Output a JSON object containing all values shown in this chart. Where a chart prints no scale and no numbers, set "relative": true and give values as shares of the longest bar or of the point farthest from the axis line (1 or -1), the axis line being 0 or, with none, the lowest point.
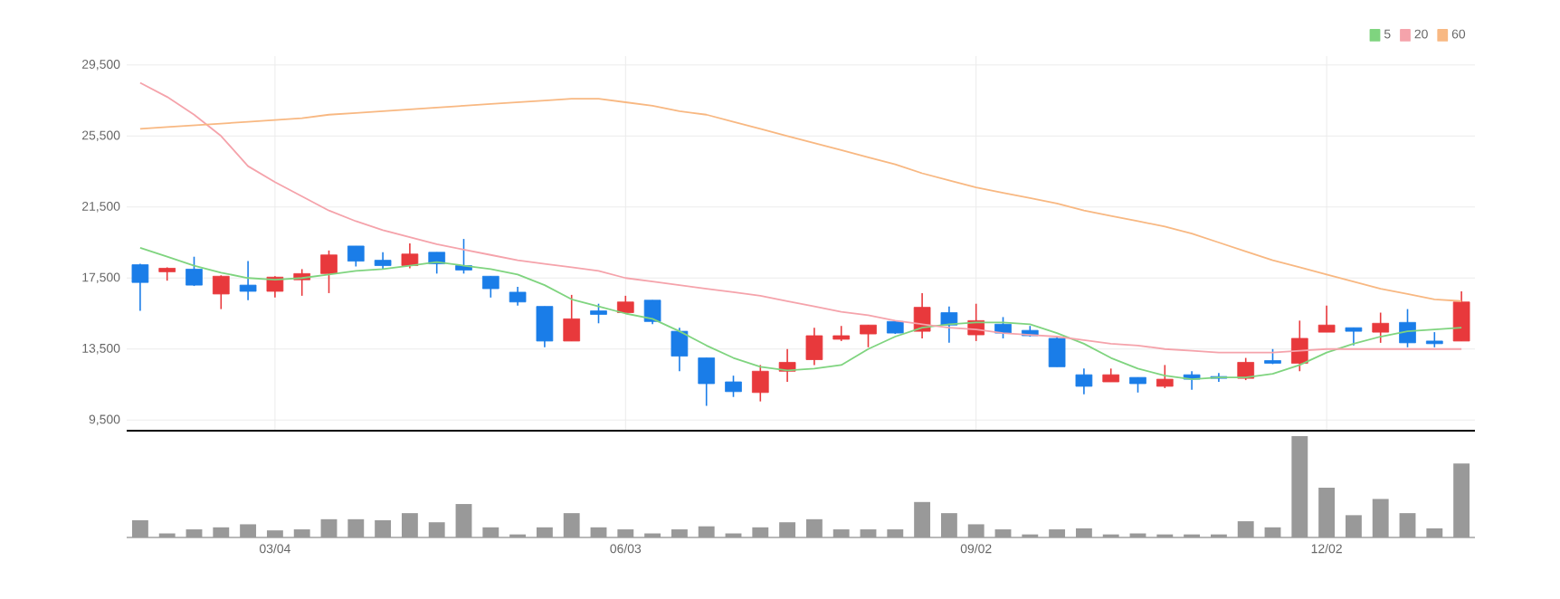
{
  "chart_data": [
    {
      "type": "candlestick",
      "categories": [
        null,
        null,
        null,
        null,
        null,
        null,
        null,
        null,
        null,
        null,
        null,
        null,
        null,
        null,
        null,
        null,
        null,
        null,
        null,
        null,
        null,
        null,
        null,
        null,
        null,
        null,
        null,
        null,
        null,
        null,
        null,
        null,
        null,
        null,
        null,
        null,
        null,
        null,
        null,
        null,
        null,
        null,
        null,
        null,
        null,
        null,
        null,
        null,
        null,
        null
      ],
      "series": [
        {
          "type": "candlestick",
          "ohlc": [
            [
              18250,
              18300,
              15650,
              17250
            ],
            [
              17850,
              18100,
              17350,
              18050
            ],
            [
              18000,
              18700,
              17050,
              17100
            ],
            [
              16600,
              17650,
              15750,
              17600
            ],
            [
              17100,
              18450,
              16250,
              16750
            ],
            [
              16750,
              17600,
              16400,
              17550
            ],
            [
              17400,
              18000,
              16500,
              17750
            ],
            [
              17750,
              19050,
              16650,
              18800
            ],
            [
              19300,
              19300,
              18150,
              18450
            ],
            [
              18500,
              18950,
              18000,
              18200
            ],
            [
              18200,
              19450,
              18050,
              18850
            ],
            [
              18950,
              18950,
              17750,
              18300
            ],
            [
              18200,
              19700,
              17750,
              17950
            ],
            [
              17600,
              17600,
              16400,
              16900
            ],
            [
              16700,
              17000,
              15950,
              16150
            ],
            [
              15900,
              15900,
              13600,
              13950
            ],
            [
              13950,
              16550,
              13950,
              15200
            ],
            [
              15650,
              16050,
              14950,
              15450
            ],
            [
              15550,
              16500,
              15550,
              16150
            ],
            [
              16250,
              16250,
              14900,
              15050
            ],
            [
              14500,
              14700,
              12250,
              13100
            ],
            [
              13000,
              13000,
              10300,
              11550
            ],
            [
              11650,
              12000,
              10800,
              11100
            ],
            [
              11050,
              12600,
              10550,
              12250
            ],
            [
              12250,
              13500,
              11650,
              12750
            ],
            [
              12900,
              14700,
              12600,
              14250
            ],
            [
              14050,
              14800,
              13950,
              14250
            ],
            [
              14350,
              14850,
              13600,
              14850
            ],
            [
              15050,
              15100,
              14350,
              14400
            ],
            [
              14500,
              16650,
              14100,
              15850
            ],
            [
              15550,
              15900,
              13850,
              14850
            ],
            [
              14300,
              16050,
              13950,
              15100
            ],
            [
              14900,
              15300,
              14100,
              14400
            ],
            [
              14550,
              14800,
              14200,
              14250
            ],
            [
              14100,
              14200,
              12500,
              12500
            ],
            [
              12050,
              12400,
              10950,
              11400
            ],
            [
              11650,
              12400,
              11650,
              12050
            ],
            [
              11900,
              11900,
              11050,
              11550
            ],
            [
              11400,
              12600,
              11300,
              11800
            ],
            [
              12050,
              12250,
              11200,
              11800
            ],
            [
              11950,
              12150,
              11650,
              11850
            ],
            [
              11850,
              13000,
              11750,
              12750
            ],
            [
              12850,
              13500,
              12650,
              12700
            ],
            [
              12700,
              15100,
              12250,
              14100
            ],
            [
              14450,
              15950,
              14450,
              14850
            ],
            [
              14700,
              14700,
              13700,
              14500
            ],
            [
              14450,
              15550,
              13850,
              14950
            ],
            [
              15000,
              15750,
              13600,
              13850
            ],
            [
              13950,
              14450,
              13600,
              13800
            ],
            [
              13950,
              16750,
              13950,
              16150
            ]
          ],
          "colors": [
            "#1a7de8",
            "#e8393c",
            "#1a7de8",
            "#e8393c",
            "#1a7de8",
            "#e8393c",
            "#e8393c",
            "#e8393c",
            "#1a7de8",
            "#1a7de8",
            "#e8393c",
            "#1a7de8",
            "#1a7de8",
            "#1a7de8",
            "#1a7de8",
            "#1a7de8",
            "#e8393c",
            "#1a7de8",
            "#e8393c",
            "#1a7de8",
            "#1a7de8",
            "#1a7de8",
            "#1a7de8",
            "#e8393c",
            "#e8393c",
            "#e8393c",
            "#e8393c",
            "#e8393c",
            "#1a7de8",
            "#e8393c",
            "#1a7de8",
            "#e8393c",
            "#1a7de8",
            "#1a7de8",
            "#1a7de8",
            "#1a7de8",
            "#e8393c",
            "#1a7de8",
            "#e8393c",
            "#1a7de8",
            "#1a7de8",
            "#e8393c",
            "#1a7de8",
            "#e8393c",
            "#e8393c",
            "#1a7de8",
            "#e8393c",
            "#1a7de8",
            "#1a7de8",
            "#e8393c"
          ]
        },
        {
          "type": "line",
          "name": "5",
          "color": "#7fd47f",
          "values": [
            19200,
            18700,
            18200,
            17800,
            17500,
            17400,
            17500,
            17700,
            17900,
            18000,
            18200,
            18400,
            18200,
            18000,
            17700,
            17100,
            16300,
            15900,
            15500,
            15200,
            14500,
            13700,
            13000,
            12500,
            12300,
            12400,
            12600,
            13500,
            14200,
            14700,
            14900,
            15000,
            15000,
            14900,
            14400,
            13800,
            13000,
            12400,
            12000,
            11800,
            11900,
            11900,
            12100,
            12600,
            13300,
            13800,
            14200,
            14500,
            14600,
            14700
          ]
        },
        {
          "type": "line",
          "name": "20",
          "color": "#f5a3ab",
          "values": [
            28500,
            27700,
            26700,
            25500,
            23800,
            22900,
            22100,
            21300,
            20700,
            20200,
            19800,
            19400,
            19100,
            18800,
            18500,
            18300,
            18100,
            17900,
            17500,
            17300,
            17100,
            16900,
            16700,
            16500,
            16200,
            15900,
            15600,
            15400,
            15100,
            14900,
            14700,
            14600,
            14400,
            14300,
            14200,
            14000,
            13800,
            13700,
            13500,
            13400,
            13300,
            13300,
            13300,
            13400,
            13500,
            13500,
            13500,
            13500,
            13500,
            13500
          ]
        },
        {
          "type": "line",
          "name": "60",
          "color": "#f8b882",
          "values": [
            25900,
            26000,
            26100,
            26200,
            26300,
            26400,
            26500,
            26700,
            26800,
            26900,
            27000,
            27100,
            27200,
            27300,
            27400,
            27500,
            27600,
            27600,
            27400,
            27200,
            26900,
            26700,
            26300,
            25900,
            25500,
            25100,
            24700,
            24300,
            23900,
            23400,
            23000,
            22600,
            22300,
            22000,
            21700,
            21300,
            21000,
            20700,
            20400,
            20000,
            19500,
            19000,
            18500,
            18100,
            17700,
            17300,
            16900,
            16600,
            16300,
            16200
          ]
        }
      ],
      "ylim": [
        8900,
        30000
      ],
      "yticks": [
        {
          "value": 9500,
          "label": "9,500"
        },
        {
          "value": 13500,
          "label": "13,500"
        },
        {
          "value": 17500,
          "label": "17,500"
        },
        {
          "value": 21500,
          "label": "21,500"
        },
        {
          "value": 25500,
          "label": "25,500"
        },
        {
          "value": 29500,
          "label": "29,500"
        }
      ],
      "grid": true,
      "legend": "top right",
      "tick_labels": "y"
    },
    {
      "type": "bar",
      "relative": true,
      "color": "#999999",
      "tick_labels": "x",
      "categories": [
        null,
        null,
        null,
        null,
        null,
        "03/04",
        null,
        null,
        null,
        null,
        null,
        null,
        null,
        null,
        null,
        null,
        null,
        null,
        "06/03",
        null,
        null,
        null,
        null,
        null,
        null,
        null,
        null,
        null,
        null,
        null,
        null,
        "09/02",
        null,
        null,
        null,
        null,
        null,
        null,
        null,
        null,
        null,
        null,
        null,
        null,
        "12/02",
        null,
        null,
        null,
        null,
        null
      ],
      "values": [
        0.17,
        0.04,
        0.08,
        0.1,
        0.13,
        0.07,
        0.08,
        0.18,
        0.18,
        0.17,
        0.24,
        0.15,
        0.33,
        0.1,
        0.03,
        0.1,
        0.24,
        0.1,
        0.08,
        0.04,
        0.08,
        0.11,
        0.04,
        0.1,
        0.15,
        0.18,
        0.08,
        0.08,
        0.08,
        0.35,
        0.24,
        0.13,
        0.08,
        0.03,
        0.08,
        0.09,
        0.03,
        0.04,
        0.03,
        0.03,
        0.03,
        0.16,
        0.1,
        1,
        0.49,
        0.22,
        0.38,
        0.24,
        0.09,
        0.73
      ]
    }
  ]
}
